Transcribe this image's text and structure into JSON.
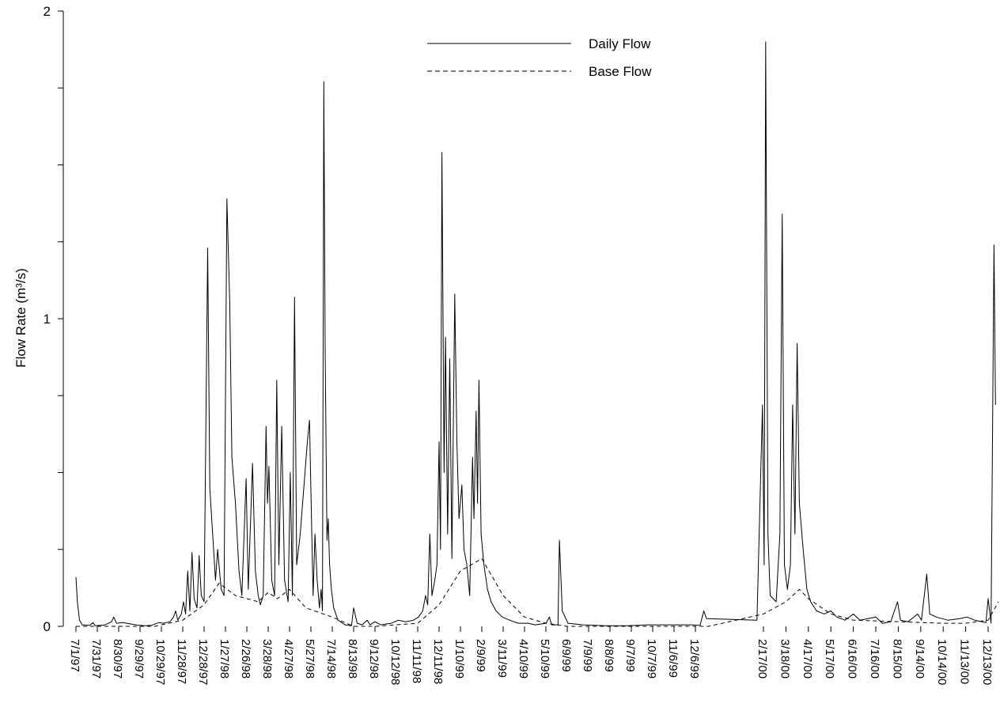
{
  "chart_data": {
    "type": "line",
    "title": "",
    "xlabel": "",
    "ylabel": "Flow Rate (m³/s)",
    "ylim": [
      0,
      2
    ],
    "xlim": [
      "1997-07-01",
      "2000-12-20"
    ],
    "y_ticks": [
      "0",
      "1",
      "2"
    ],
    "x_tick_labels": [
      "7/1/97",
      "7/31/97",
      "8/30/97",
      "9/29/97",
      "10/29/97",
      "11/28/97",
      "12/28/97",
      "1/27/98",
      "2/26/98",
      "3/28/98",
      "4/27/98",
      "5/27/98",
      "7/14/98",
      "8/13/98",
      "9/12/98",
      "10/12/98",
      "11/11/98",
      "12/11/98",
      "1/10/99",
      "2/9/99",
      "3/11/99",
      "4/10/99",
      "5/10/99",
      "6/9/99",
      "7/9/99",
      "8/8/99",
      "9/7/99",
      "10/7/99",
      "11/6/99",
      "12/6/99",
      "2/17/00",
      "3/18/00",
      "4/17/00",
      "5/17/00",
      "6/16/00",
      "7/16/00",
      "8/15/00",
      "9/14/00",
      "10/14/00",
      "11/13/00",
      "12/13/00"
    ],
    "x_tick_dates": [
      "1997-07-01",
      "1997-07-31",
      "1997-08-30",
      "1997-09-29",
      "1997-10-29",
      "1997-11-28",
      "1997-12-28",
      "1998-01-27",
      "1998-02-26",
      "1998-03-28",
      "1998-04-27",
      "1998-05-27",
      "1998-07-14",
      "1998-08-13",
      "1998-09-12",
      "1998-10-12",
      "1998-11-11",
      "1998-12-11",
      "1999-01-10",
      "1999-02-09",
      "1999-03-11",
      "1999-04-10",
      "1999-05-10",
      "1999-06-09",
      "1999-07-09",
      "1999-08-08",
      "1999-09-07",
      "1999-10-07",
      "1999-11-06",
      "1999-12-06",
      "2000-02-17",
      "2000-03-18",
      "2000-04-17",
      "2000-05-17",
      "2000-06-16",
      "2000-07-16",
      "2000-08-15",
      "2000-09-14",
      "2000-10-14",
      "2000-11-13",
      "2000-12-13"
    ],
    "legend": {
      "position": "top-center"
    },
    "series": [
      {
        "name": "Daily Flow",
        "style": "solid",
        "color": "#000000",
        "points": [
          [
            "1997-07-01",
            0.16
          ],
          [
            "1997-07-03",
            0.08
          ],
          [
            "1997-07-06",
            0.02
          ],
          [
            "1997-07-10",
            0.005
          ],
          [
            "1997-07-20",
            0.003
          ],
          [
            "1997-07-25",
            0.012
          ],
          [
            "1997-07-28",
            0.002
          ],
          [
            "1997-08-10",
            0.004
          ],
          [
            "1997-08-20",
            0.015
          ],
          [
            "1997-08-23",
            0.03
          ],
          [
            "1997-08-27",
            0.01
          ],
          [
            "1997-09-05",
            0.012
          ],
          [
            "1997-09-15",
            0.008
          ],
          [
            "1997-09-25",
            0.004
          ],
          [
            "1997-10-05",
            0.002
          ],
          [
            "1997-10-15",
            0.003
          ],
          [
            "1997-10-25",
            0.012
          ],
          [
            "1997-11-01",
            0.01
          ],
          [
            "1997-11-10",
            0.015
          ],
          [
            "1997-11-15",
            0.03
          ],
          [
            "1997-11-18",
            0.05
          ],
          [
            "1997-11-21",
            0.02
          ],
          [
            "1997-11-26",
            0.04
          ],
          [
            "1997-11-29",
            0.08
          ],
          [
            "1997-12-02",
            0.04
          ],
          [
            "1997-12-05",
            0.18
          ],
          [
            "1997-12-08",
            0.05
          ],
          [
            "1997-12-11",
            0.24
          ],
          [
            "1997-12-14",
            0.09
          ],
          [
            "1997-12-18",
            0.06
          ],
          [
            "1997-12-21",
            0.23
          ],
          [
            "1997-12-24",
            0.1
          ],
          [
            "1997-12-28",
            0.08
          ],
          [
            "1998-01-02",
            1.23
          ],
          [
            "1998-01-05",
            0.45
          ],
          [
            "1998-01-09",
            0.3
          ],
          [
            "1998-01-13",
            0.15
          ],
          [
            "1998-01-16",
            0.25
          ],
          [
            "1998-01-21",
            0.12
          ],
          [
            "1998-01-25",
            0.1
          ],
          [
            "1998-01-29",
            1.39
          ],
          [
            "1998-02-02",
            1.05
          ],
          [
            "1998-02-05",
            0.55
          ],
          [
            "1998-02-10",
            0.4
          ],
          [
            "1998-02-15",
            0.18
          ],
          [
            "1998-02-19",
            0.1
          ],
          [
            "1998-02-25",
            0.48
          ],
          [
            "1998-02-28",
            0.12
          ],
          [
            "1998-03-06",
            0.53
          ],
          [
            "1998-03-10",
            0.18
          ],
          [
            "1998-03-14",
            0.1
          ],
          [
            "1998-03-17",
            0.07
          ],
          [
            "1998-03-21",
            0.1
          ],
          [
            "1998-03-25",
            0.65
          ],
          [
            "1998-03-27",
            0.4
          ],
          [
            "1998-03-29",
            0.52
          ],
          [
            "1998-04-02",
            0.15
          ],
          [
            "1998-04-06",
            0.1
          ],
          [
            "1998-04-09",
            0.8
          ],
          [
            "1998-04-12",
            0.2
          ],
          [
            "1998-04-16",
            0.65
          ],
          [
            "1998-04-20",
            0.15
          ],
          [
            "1998-04-25",
            0.08
          ],
          [
            "1998-04-28",
            0.5
          ],
          [
            "1998-05-01",
            0.1
          ],
          [
            "1998-05-04",
            1.07
          ],
          [
            "1998-05-07",
            0.2
          ],
          [
            "1998-05-12",
            0.3
          ],
          [
            "1998-05-17",
            0.45
          ],
          [
            "1998-05-22",
            0.6
          ],
          [
            "1998-05-25",
            0.67
          ],
          [
            "1998-05-29",
            0.3
          ],
          [
            "1998-06-01",
            0.1
          ],
          [
            "1998-06-05",
            0.3
          ],
          [
            "1998-06-10",
            0.15
          ],
          [
            "1998-06-15",
            0.06
          ],
          [
            "1998-06-19",
            0.12
          ],
          [
            "1998-06-22",
            0.05
          ],
          [
            "1998-06-25",
            1.77
          ],
          [
            "1998-06-28",
            0.9
          ],
          [
            "1998-07-02",
            0.28
          ],
          [
            "1998-07-05",
            0.35
          ],
          [
            "1998-07-08",
            0.2
          ],
          [
            "1998-07-12",
            0.12
          ],
          [
            "1998-07-16",
            0.06
          ],
          [
            "1998-07-22",
            0.02
          ],
          [
            "1998-08-01",
            0.005
          ],
          [
            "1998-08-10",
            0.002
          ],
          [
            "1998-08-13",
            0.06
          ],
          [
            "1998-08-18",
            0.01
          ],
          [
            "1998-08-25",
            0.005
          ],
          [
            "1998-09-01",
            0.02
          ],
          [
            "1998-09-05",
            0.005
          ],
          [
            "1998-09-12",
            0.015
          ],
          [
            "1998-09-20",
            0.005
          ],
          [
            "1998-10-05",
            0.01
          ],
          [
            "1998-10-15",
            0.02
          ],
          [
            "1998-10-25",
            0.015
          ],
          [
            "1998-11-05",
            0.02
          ],
          [
            "1998-11-12",
            0.03
          ],
          [
            "1998-11-18",
            0.05
          ],
          [
            "1998-11-22",
            0.1
          ],
          [
            "1998-11-25",
            0.07
          ],
          [
            "1998-11-28",
            0.3
          ],
          [
            "1998-12-01",
            0.1
          ],
          [
            "1998-12-05",
            0.15
          ],
          [
            "1998-12-08",
            0.2
          ],
          [
            "1998-12-11",
            0.6
          ],
          [
            "1998-12-13",
            0.25
          ],
          [
            "1998-12-15",
            1.54
          ],
          [
            "1998-12-18",
            0.5
          ],
          [
            "1998-12-20",
            0.94
          ],
          [
            "1998-12-23",
            0.3
          ],
          [
            "1998-12-26",
            0.87
          ],
          [
            "1998-12-29",
            0.22
          ],
          [
            "1999-01-02",
            1.08
          ],
          [
            "1999-01-05",
            0.6
          ],
          [
            "1999-01-08",
            0.35
          ],
          [
            "1999-01-12",
            0.46
          ],
          [
            "1999-01-15",
            0.25
          ],
          [
            "1999-01-19",
            0.2
          ],
          [
            "1999-01-23",
            0.1
          ],
          [
            "1999-01-27",
            0.55
          ],
          [
            "1999-01-29",
            0.35
          ],
          [
            "1999-02-01",
            0.7
          ],
          [
            "1999-02-03",
            0.4
          ],
          [
            "1999-02-05",
            0.8
          ],
          [
            "1999-02-08",
            0.3
          ],
          [
            "1999-02-12",
            0.2
          ],
          [
            "1999-02-17",
            0.12
          ],
          [
            "1999-02-22",
            0.08
          ],
          [
            "1999-03-01",
            0.05
          ],
          [
            "1999-03-10",
            0.03
          ],
          [
            "1999-03-20",
            0.02
          ],
          [
            "1999-04-01",
            0.01
          ],
          [
            "1999-04-15",
            0.01
          ],
          [
            "1999-04-25",
            0.005
          ],
          [
            "1999-05-10",
            0.01
          ],
          [
            "1999-05-15",
            0.03
          ],
          [
            "1999-05-18",
            0.005
          ],
          [
            "1999-05-27",
            0.005
          ],
          [
            "1999-05-29",
            0.28
          ],
          [
            "1999-06-02",
            0.05
          ],
          [
            "1999-06-10",
            0.01
          ],
          [
            "1999-07-01",
            0.005
          ],
          [
            "1999-08-01",
            0.002
          ],
          [
            "1999-09-01",
            0.002
          ],
          [
            "1999-10-01",
            0.005
          ],
          [
            "1999-11-01",
            0.005
          ],
          [
            "1999-12-01",
            0.005
          ],
          [
            "1999-12-11",
            0.003
          ],
          [
            "1999-12-15",
            0.05
          ],
          [
            "1999-12-18",
            0.025
          ],
          [
            "2000-02-10",
            0.02
          ],
          [
            "2000-02-16",
            0.72
          ],
          [
            "2000-02-18",
            0.2
          ],
          [
            "2000-02-20",
            1.9
          ],
          [
            "2000-02-23",
            0.3
          ],
          [
            "2000-02-26",
            0.1
          ],
          [
            "2000-03-05",
            0.08
          ],
          [
            "2000-03-10",
            0.3
          ],
          [
            "2000-03-13",
            1.34
          ],
          [
            "2000-03-16",
            0.2
          ],
          [
            "2000-03-20",
            0.12
          ],
          [
            "2000-03-24",
            0.2
          ],
          [
            "2000-03-27",
            0.72
          ],
          [
            "2000-03-30",
            0.3
          ],
          [
            "2000-04-02",
            0.92
          ],
          [
            "2000-04-05",
            0.4
          ],
          [
            "2000-04-10",
            0.25
          ],
          [
            "2000-04-15",
            0.12
          ],
          [
            "2000-04-20",
            0.08
          ],
          [
            "2000-04-28",
            0.05
          ],
          [
            "2000-05-08",
            0.04
          ],
          [
            "2000-05-17",
            0.05
          ],
          [
            "2000-05-25",
            0.03
          ],
          [
            "2000-06-05",
            0.02
          ],
          [
            "2000-06-16",
            0.04
          ],
          [
            "2000-06-25",
            0.02
          ],
          [
            "2000-07-16",
            0.03
          ],
          [
            "2000-07-25",
            0.01
          ],
          [
            "2000-08-05",
            0.015
          ],
          [
            "2000-08-14",
            0.08
          ],
          [
            "2000-08-18",
            0.02
          ],
          [
            "2000-08-28",
            0.015
          ],
          [
            "2000-09-10",
            0.04
          ],
          [
            "2000-09-15",
            0.02
          ],
          [
            "2000-09-22",
            0.17
          ],
          [
            "2000-09-26",
            0.04
          ],
          [
            "2000-10-05",
            0.03
          ],
          [
            "2000-10-20",
            0.02
          ],
          [
            "2000-11-05",
            0.025
          ],
          [
            "2000-11-15",
            0.03
          ],
          [
            "2000-11-25",
            0.02
          ],
          [
            "2000-12-05",
            0.015
          ],
          [
            "2000-12-10",
            0.012
          ],
          [
            "2000-12-13",
            0.09
          ],
          [
            "2000-12-15",
            0.01
          ],
          [
            "2000-12-17",
            1.24
          ],
          [
            "2000-12-18",
            0.72
          ]
        ]
      },
      {
        "name": "Base Flow",
        "style": "dashed",
        "color": "#000000",
        "points": [
          [
            "1997-07-01",
            0.0
          ],
          [
            "1997-10-20",
            0.0
          ],
          [
            "1997-11-28",
            0.02
          ],
          [
            "1997-12-28",
            0.07
          ],
          [
            "1998-01-18",
            0.14
          ],
          [
            "1998-02-10",
            0.1
          ],
          [
            "1998-03-14",
            0.08
          ],
          [
            "1998-03-28",
            0.11
          ],
          [
            "1998-04-10",
            0.09
          ],
          [
            "1998-04-27",
            0.12
          ],
          [
            "1998-05-20",
            0.06
          ],
          [
            "1998-07-14",
            0.03
          ],
          [
            "1998-08-13",
            0.0
          ],
          [
            "1998-09-12",
            0.0
          ],
          [
            "1998-11-11",
            0.01
          ],
          [
            "1998-12-11",
            0.07
          ],
          [
            "1999-01-10",
            0.18
          ],
          [
            "1999-02-09",
            0.22
          ],
          [
            "1999-03-11",
            0.1
          ],
          [
            "1999-04-10",
            0.03
          ],
          [
            "1999-05-10",
            0.01
          ],
          [
            "1999-06-09",
            0.0
          ],
          [
            "1999-12-20",
            0.0
          ],
          [
            "2000-02-17",
            0.04
          ],
          [
            "2000-03-18",
            0.08
          ],
          [
            "2000-04-05",
            0.12
          ],
          [
            "2000-04-17",
            0.09
          ],
          [
            "2000-05-17",
            0.04
          ],
          [
            "2000-06-16",
            0.02
          ],
          [
            "2000-10-14",
            0.01
          ],
          [
            "2000-11-13",
            0.01
          ],
          [
            "2000-12-13",
            0.02
          ],
          [
            "2000-12-20",
            0.08
          ]
        ]
      }
    ]
  }
}
